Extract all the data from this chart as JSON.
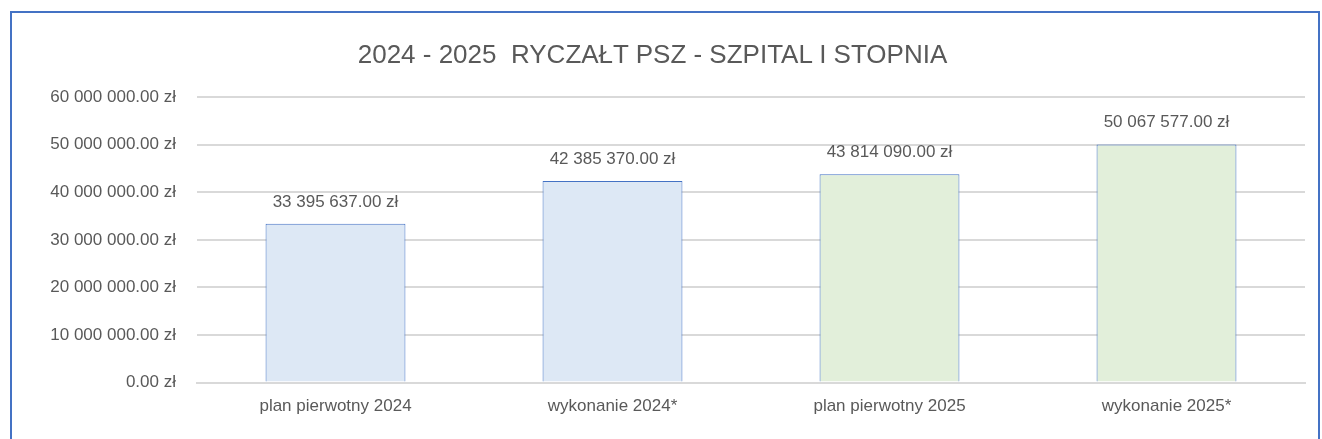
{
  "chart_data": {
    "type": "bar",
    "title": "2024 - 2025  RYCZAŁT PSZ - SZPITAL I STOPNIA",
    "categories": [
      "plan pierwotny 2024",
      "wykonanie 2024*",
      "plan pierwotny 2025",
      "wykonanie 2025*"
    ],
    "values": [
      33395637,
      42385370,
      43814090,
      50067577
    ],
    "value_labels": [
      "33 395 637.00 zł",
      "42 385 370.00 zł",
      "43 814 090.00 zł",
      "50 067 577.00 zł"
    ],
    "colors": [
      "#dde8f5",
      "#dde8f5",
      "#e2efda",
      "#e2efda"
    ],
    "ylim": [
      0,
      60000000
    ],
    "yticks": [
      {
        "value": 0,
        "label": "0.00 zł"
      },
      {
        "value": 10000000,
        "label": "10 000 000.00 zł"
      },
      {
        "value": 20000000,
        "label": "20 000 000.00 zł"
      },
      {
        "value": 30000000,
        "label": "30 000 000.00 zł"
      },
      {
        "value": 40000000,
        "label": "40 000 000.00 zł"
      },
      {
        "value": 50000000,
        "label": "50 000 000.00 zł"
      },
      {
        "value": 60000000,
        "label": "60 000 000.00 zł"
      }
    ],
    "grid": "y"
  }
}
